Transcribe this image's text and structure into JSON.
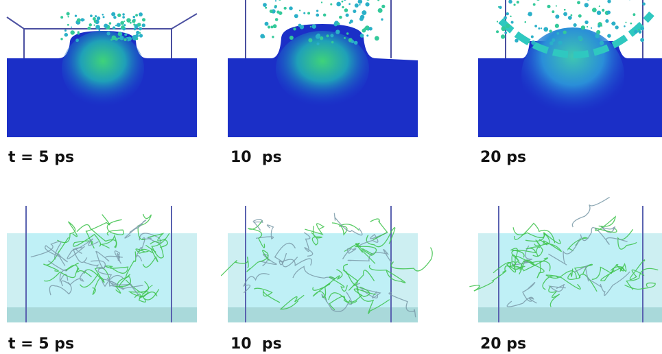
{
  "top_row": {
    "labels": [
      "t = 5 ps",
      "10  ps",
      "20 ps"
    ]
  },
  "bottom_row": {
    "labels": [
      "t = 5 ps",
      "10  ps",
      "20 ps"
    ]
  }
}
